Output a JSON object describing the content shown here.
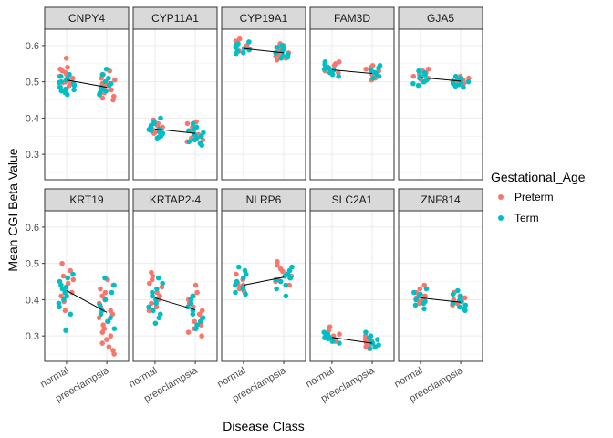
{
  "chart_data": {
    "type": "scatter",
    "title": "",
    "xlabel": "Disease Class",
    "ylabel": "Mean CGI Beta Value",
    "categories": [
      "normal",
      "preeclampsia"
    ],
    "ylim": [
      0.23,
      0.645
    ],
    "yticks": [
      0.3,
      0.4,
      0.5,
      0.6
    ],
    "ytick_labels": [
      "0.3",
      "0.4",
      "0.5",
      "0.6"
    ],
    "grid": true,
    "facet_layout": {
      "rows": 2,
      "cols": 5,
      "shared_y": true
    },
    "legend": {
      "title": "Gestational_Age",
      "placement": "right",
      "entries": [
        {
          "label": "Preterm",
          "color": "#F8766D"
        },
        {
          "label": "Term",
          "color": "#00BFC4"
        }
      ]
    },
    "trend_line_color": "#000000",
    "panels": [
      {
        "gene": "CNPY4",
        "means": [
          0.505,
          0.485
        ],
        "normal": {
          "preterm": [
            0.565,
            0.54,
            0.535,
            0.53,
            0.525,
            0.52,
            0.515,
            0.51,
            0.505,
            0.5,
            0.498,
            0.495,
            0.49,
            0.485,
            0.48,
            0.475
          ],
          "term": [
            0.52,
            0.515,
            0.51,
            0.505,
            0.5,
            0.498,
            0.495,
            0.49,
            0.485,
            0.48,
            0.478,
            0.475,
            0.47,
            0.465
          ]
        },
        "preeclampsia": {
          "preterm": [
            0.53,
            0.52,
            0.51,
            0.505,
            0.5,
            0.495,
            0.49,
            0.485,
            0.48,
            0.478,
            0.475,
            0.47,
            0.465,
            0.46,
            0.455,
            0.45
          ],
          "term": [
            0.535,
            0.52,
            0.51,
            0.5,
            0.495,
            0.49,
            0.485,
            0.48,
            0.475,
            0.47,
            0.465
          ]
        }
      },
      {
        "gene": "CYP11A1",
        "means": [
          0.37,
          0.358
        ],
        "normal": {
          "preterm": [
            0.395,
            0.385,
            0.38,
            0.375,
            0.37,
            0.365,
            0.36,
            0.358
          ],
          "term": [
            0.4,
            0.39,
            0.385,
            0.38,
            0.375,
            0.37,
            0.368,
            0.365,
            0.362,
            0.36,
            0.358,
            0.355,
            0.35,
            0.348,
            0.345
          ]
        },
        "preeclampsia": {
          "preterm": [
            0.39,
            0.385,
            0.375,
            0.37,
            0.365,
            0.36,
            0.355,
            0.35,
            0.345,
            0.34,
            0.335
          ],
          "term": [
            0.385,
            0.375,
            0.37,
            0.365,
            0.36,
            0.355,
            0.35,
            0.345,
            0.34,
            0.335,
            0.33,
            0.325
          ]
        }
      },
      {
        "gene": "CYP19A1",
        "means": [
          0.592,
          0.58
        ],
        "normal": {
          "preterm": [
            0.618,
            0.612,
            0.605,
            0.6,
            0.598,
            0.595,
            0.59,
            0.585
          ],
          "term": [
            0.61,
            0.605,
            0.6,
            0.598,
            0.595,
            0.592,
            0.59,
            0.588,
            0.585,
            0.58,
            0.578
          ]
        },
        "preeclampsia": {
          "preterm": [
            0.605,
            0.6,
            0.595,
            0.59,
            0.588,
            0.585,
            0.58,
            0.578,
            0.575,
            0.57,
            0.565,
            0.56
          ],
          "term": [
            0.6,
            0.595,
            0.59,
            0.585,
            0.58,
            0.575,
            0.572,
            0.568,
            0.565
          ]
        }
      },
      {
        "gene": "FAM3D",
        "means": [
          0.533,
          0.523
        ],
        "normal": {
          "preterm": [
            0.555,
            0.55,
            0.545,
            0.54,
            0.535,
            0.53,
            0.525
          ],
          "term": [
            0.555,
            0.548,
            0.542,
            0.538,
            0.535,
            0.532,
            0.528,
            0.525,
            0.52,
            0.515
          ]
        },
        "preeclampsia": {
          "preterm": [
            0.545,
            0.54,
            0.535,
            0.53,
            0.525,
            0.52,
            0.515,
            0.51,
            0.505
          ],
          "term": [
            0.545,
            0.538,
            0.532,
            0.528,
            0.525,
            0.52,
            0.515,
            0.51
          ]
        }
      },
      {
        "gene": "GJA5",
        "means": [
          0.512,
          0.502
        ],
        "normal": {
          "preterm": [
            0.535,
            0.53,
            0.525,
            0.52,
            0.515,
            0.51,
            0.505,
            0.5
          ],
          "term": [
            0.53,
            0.525,
            0.52,
            0.515,
            0.51,
            0.505,
            0.5,
            0.495,
            0.49
          ]
        },
        "preeclampsia": {
          "preterm": [
            0.515,
            0.51,
            0.505,
            0.5,
            0.495,
            0.49
          ],
          "term": [
            0.515,
            0.51,
            0.506,
            0.502,
            0.5,
            0.498,
            0.495,
            0.492,
            0.488,
            0.485
          ]
        }
      },
      {
        "gene": "KRT19",
        "means": [
          0.425,
          0.365
        ],
        "normal": {
          "preterm": [
            0.5,
            0.48,
            0.465,
            0.455,
            0.445,
            0.43,
            0.42,
            0.41,
            0.395,
            0.37
          ],
          "term": [
            0.47,
            0.46,
            0.45,
            0.44,
            0.435,
            0.43,
            0.42,
            0.41,
            0.4,
            0.39,
            0.38,
            0.36,
            0.315
          ]
        },
        "preeclampsia": {
          "preterm": [
            0.455,
            0.44,
            0.43,
            0.42,
            0.41,
            0.4,
            0.39,
            0.38,
            0.37,
            0.36,
            0.35,
            0.34,
            0.33,
            0.32,
            0.31,
            0.3,
            0.29,
            0.28,
            0.27,
            0.26,
            0.25
          ],
          "term": [
            0.46,
            0.44,
            0.42,
            0.4,
            0.385,
            0.37,
            0.36,
            0.35,
            0.34,
            0.32
          ]
        }
      },
      {
        "gene": "KRTAP2-4",
        "means": [
          0.405,
          0.372
        ],
        "normal": {
          "preterm": [
            0.475,
            0.465,
            0.455,
            0.445,
            0.435,
            0.42,
            0.41,
            0.4,
            0.39,
            0.38,
            0.37
          ],
          "term": [
            0.46,
            0.445,
            0.43,
            0.42,
            0.41,
            0.4,
            0.39,
            0.38,
            0.37,
            0.36,
            0.35,
            0.335
          ]
        },
        "preeclampsia": {
          "preterm": [
            0.44,
            0.42,
            0.41,
            0.4,
            0.39,
            0.38,
            0.37,
            0.36,
            0.35,
            0.34,
            0.33,
            0.32,
            0.31,
            0.3
          ],
          "term": [
            0.41,
            0.4,
            0.39,
            0.38,
            0.37,
            0.36,
            0.35,
            0.34,
            0.33,
            0.32
          ]
        }
      },
      {
        "gene": "NLRP6",
        "means": [
          0.44,
          0.462
        ],
        "normal": {
          "preterm": [
            0.47,
            0.455,
            0.445,
            0.44,
            0.435,
            0.43,
            0.425,
            0.42
          ],
          "term": [
            0.49,
            0.48,
            0.47,
            0.46,
            0.45,
            0.44,
            0.435,
            0.43,
            0.42,
            0.415
          ]
        },
        "preeclampsia": {
          "preterm": [
            0.505,
            0.495,
            0.485,
            0.478,
            0.47,
            0.465,
            0.46,
            0.455,
            0.45,
            0.44
          ],
          "term": [
            0.49,
            0.48,
            0.47,
            0.465,
            0.46,
            0.455,
            0.45,
            0.44,
            0.43,
            0.41
          ]
        }
      },
      {
        "gene": "SLC2A1",
        "means": [
          0.296,
          0.28
        ],
        "normal": {
          "preterm": [
            0.325,
            0.315,
            0.305,
            0.3,
            0.295,
            0.29,
            0.285
          ],
          "term": [
            0.31,
            0.305,
            0.3,
            0.297,
            0.295,
            0.292,
            0.29,
            0.288,
            0.285,
            0.28
          ]
        },
        "preeclampsia": {
          "preterm": [
            0.3,
            0.295,
            0.29,
            0.285,
            0.28,
            0.275,
            0.27,
            0.265
          ],
          "term": [
            0.31,
            0.3,
            0.295,
            0.29,
            0.285,
            0.28,
            0.275,
            0.27,
            0.265
          ]
        }
      },
      {
        "gene": "ZNF814",
        "means": [
          0.405,
          0.393
        ],
        "normal": {
          "preterm": [
            0.44,
            0.43,
            0.42,
            0.41,
            0.405,
            0.4,
            0.395,
            0.39
          ],
          "term": [
            0.43,
            0.42,
            0.415,
            0.41,
            0.4,
            0.395,
            0.39,
            0.385,
            0.375
          ]
        },
        "preeclampsia": {
          "preterm": [
            0.42,
            0.41,
            0.405,
            0.4,
            0.395,
            0.39,
            0.385,
            0.38,
            0.375
          ],
          "term": [
            0.425,
            0.415,
            0.41,
            0.4,
            0.395,
            0.39,
            0.385,
            0.38,
            0.375,
            0.37
          ]
        }
      }
    ]
  }
}
